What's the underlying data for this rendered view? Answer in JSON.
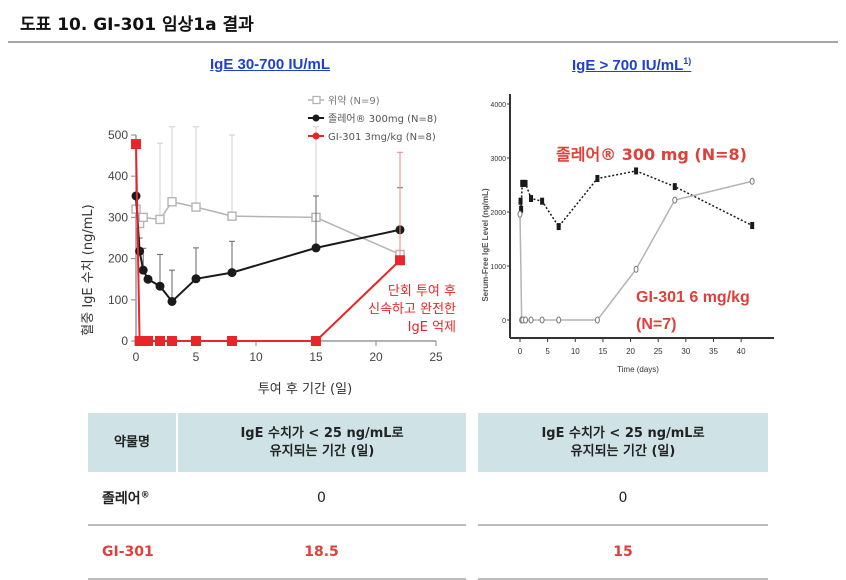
{
  "page": {
    "title": "도표 10. GI-301 임상1a 결과"
  },
  "colors": {
    "red": "#e8262a",
    "black": "#1a1a1a",
    "gray": "#b4b4b4",
    "link": "#1f3fd0",
    "table_header_bg": "#cfe3e6",
    "table_red_text": "#e0403a"
  },
  "chart_data": [
    {
      "type": "line",
      "title": "IgE 30-700 IU/mL",
      "xlabel": "투여 후 기간 (일)",
      "ylabel": "혈중 IgE 수치 (ng/mL)",
      "xlim": [
        0,
        25
      ],
      "ylim": [
        0,
        500
      ],
      "xticks": [
        "0",
        "5",
        "10",
        "15",
        "20",
        "25"
      ],
      "yticks": [
        "0",
        "100",
        "200",
        "300",
        "400",
        "500"
      ],
      "legend_position": "top-right",
      "series": [
        {
          "name": "위약 (N=9)",
          "color": "#b4b4b4",
          "marker": "open-square",
          "x": [
            0,
            0.3,
            0.6,
            2,
            3,
            5,
            8,
            15,
            22
          ],
          "y": [
            320,
            285,
            300,
            295,
            338,
            325,
            303,
            300,
            210
          ],
          "err_upper": [
            null,
            null,
            null,
            480,
            520,
            520,
            500,
            520,
            null
          ]
        },
        {
          "name": "졸레어® 300mg (N=8)",
          "color": "#1a1a1a",
          "marker": "filled-circle",
          "x": [
            0,
            0.3,
            0.6,
            1,
            2,
            3,
            5,
            8,
            15,
            22
          ],
          "y": [
            352,
            218,
            172,
            150,
            133,
            96,
            151,
            166,
            226,
            270
          ],
          "err_upper": [
            null,
            250,
            225,
            null,
            210,
            172,
            226,
            242,
            352,
            372
          ]
        },
        {
          "name": "GI-301 3mg/kg (N=8)",
          "color": "#e8262a",
          "marker": "filled-square",
          "x": [
            0,
            0.3,
            0.6,
            1,
            2,
            3,
            5,
            8,
            15,
            22
          ],
          "y": [
            478,
            0,
            0,
            0,
            0,
            0,
            0,
            0,
            0,
            196
          ],
          "err_upper": [
            null,
            null,
            null,
            null,
            null,
            null,
            null,
            null,
            null,
            458
          ]
        }
      ],
      "annotation": [
        "단회 투여 후",
        "신속하고 완전한",
        "IgE 억제"
      ]
    },
    {
      "type": "line",
      "title": "IgE > 700 IU/mL",
      "title_superscript": "1)",
      "xlabel": "Time (days)",
      "ylabel": "Serum-Free IgE Level (ng/mL)",
      "xlim": [
        0,
        42
      ],
      "ylim": [
        0,
        4000
      ],
      "xticks": [
        "0",
        "5",
        "10",
        "15",
        "20",
        "25",
        "30",
        "35",
        "40"
      ],
      "yticks": [
        "0",
        "1000",
        "2000",
        "3000",
        "4000"
      ],
      "series": [
        {
          "name": "졸레어®  300 mg (N=8)",
          "color": "#1a1a1a",
          "style": "dotted",
          "marker": "filled-square",
          "x": [
            0.1,
            0.2,
            0.4,
            0.6,
            1,
            2,
            4,
            7,
            14,
            21,
            28,
            42
          ],
          "y": [
            2200,
            2050,
            2530,
            2530,
            2530,
            2250,
            2200,
            1730,
            2620,
            2760,
            2470,
            1750
          ]
        },
        {
          "name": "GI-301 6 mg/kg (N=7)",
          "color": "#b4b4b4",
          "style": "solid",
          "marker": "open-circle",
          "x": [
            0,
            0.3,
            0.5,
            1,
            2,
            4,
            7,
            14,
            21,
            28,
            42
          ],
          "y": [
            1960,
            0,
            0,
            0,
            0,
            0,
            0,
            0,
            940,
            2220,
            2570
          ]
        }
      ],
      "annotations": [
        "졸레어®  300 mg (N=8)",
        "GI-301 6 mg/kg",
        "(N=7)"
      ]
    }
  ],
  "tables": {
    "left": {
      "headers": [
        "약물명",
        "IgE  수치가 < 25 ng/mL로",
        "유지되는 기간 (일)"
      ],
      "rows": [
        {
          "name": "졸레어",
          "name_sup": "®",
          "value": "0"
        },
        {
          "name": "GI-301",
          "value": "18.5"
        }
      ]
    },
    "right": {
      "headers": [
        "IgE  수치가 < 25 ng/mL로",
        "유지되는 기간 (일)"
      ],
      "rows": [
        {
          "value": "0"
        },
        {
          "value": "15"
        }
      ]
    }
  }
}
